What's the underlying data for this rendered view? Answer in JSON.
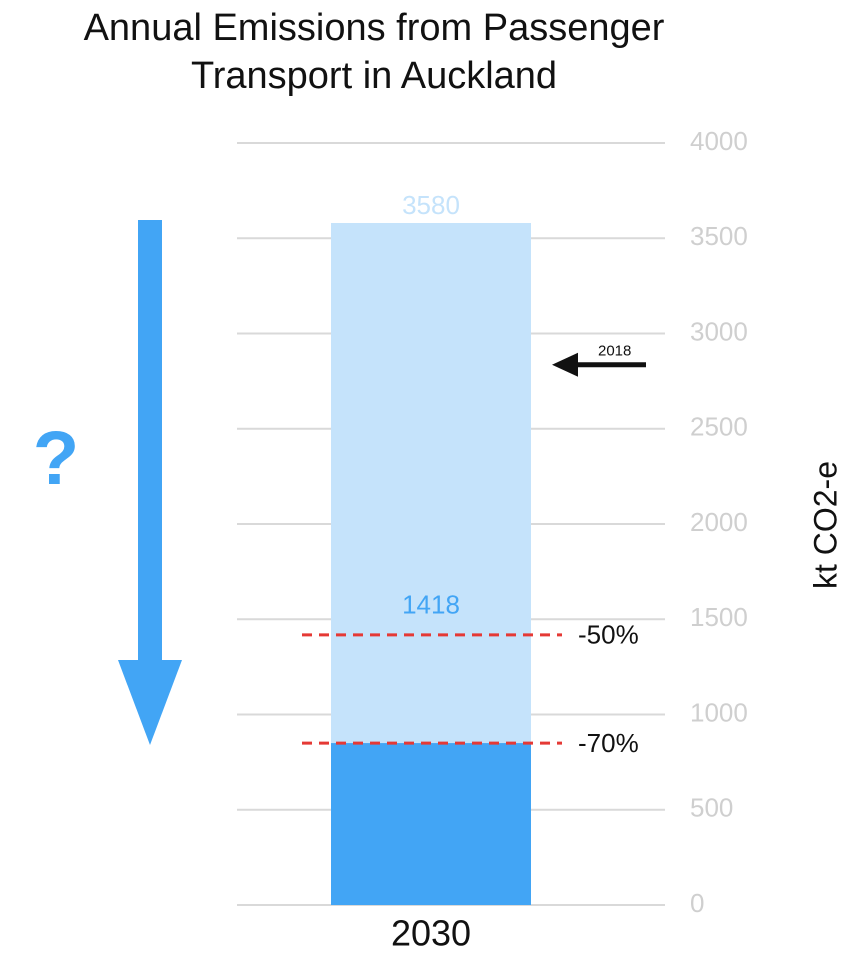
{
  "chart_data": {
    "type": "bar",
    "title": "Annual Emissions from Passenger Transport in Auckland",
    "y_label": "kt CO2-e",
    "categories": [
      "2030"
    ],
    "series": [
      {
        "color": "#c5e3fb",
        "values": [
          3580
        ]
      },
      {
        "color": "#42a5f5",
        "values": [
          850
        ]
      }
    ],
    "ylim": [
      0,
      4000
    ],
    "yticks": [
      0,
      500,
      1000,
      1500,
      2000,
      2500,
      3000,
      3500,
      4000
    ],
    "grid": true,
    "reference_lines": [
      {
        "label": "-50%",
        "value": 1418,
        "color": "#e53935"
      },
      {
        "label": "-70%",
        "value": 850,
        "color": "#e53935"
      }
    ],
    "annotations": [
      {
        "label": "2018",
        "value": 2836
      },
      {
        "label": "?"
      }
    ]
  }
}
